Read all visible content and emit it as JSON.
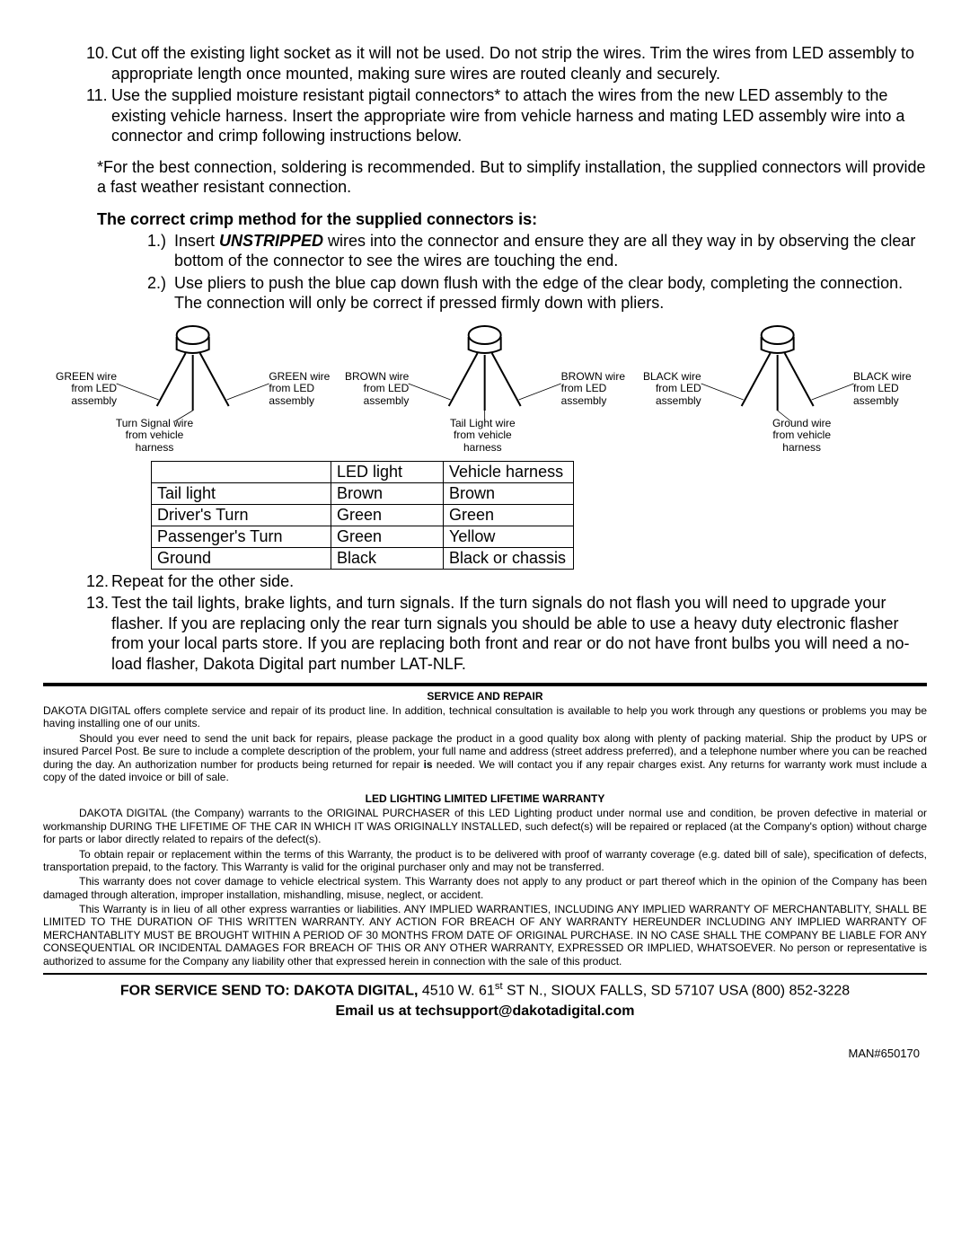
{
  "steps": {
    "s10": {
      "num": "10.",
      "text": "Cut off the existing light socket as it will not be used.  Do not strip the wires.  Trim the wires from LED assembly to appropriate length once mounted, making sure wires are routed cleanly and securely."
    },
    "s11": {
      "num": "11.",
      "text": "Use the supplied moisture resistant pigtail connectors* to attach the wires from the new LED assembly to the existing vehicle harness.  Insert the appropriate wire from vehicle harness and mating LED assembly wire into a connector and crimp following instructions below."
    },
    "s12": {
      "num": "12.",
      "text": "Repeat for the other side."
    },
    "s13": {
      "num": "13.",
      "text": "Test the tail lights, brake lights, and turn signals.  If the turn signals do not flash you will need to upgrade your flasher.  If you are replacing only the rear turn signals you should be able to use a heavy duty electronic flasher from your local parts store.  If you are replacing both front and rear or do not have front bulbs you will need a no-load flasher, Dakota Digital part number LAT-NLF."
    }
  },
  "note": "*For the best connection, soldering is recommended.  But to simplify installation, the supplied connectors will provide a fast weather resistant connection.",
  "crimp": {
    "heading": "The correct crimp method for the supplied connectors is",
    "colon": ":",
    "sub1_num": "1.)",
    "sub1_a": "Insert ",
    "sub1_bold": "UNSTRIPPED",
    "sub1_b": " wires into the connector and ensure they are all they way in by observing the clear bottom of the connector to see the wires are touching the end.",
    "sub2_num": "2.)",
    "sub2": "Use pliers to push the blue cap down flush with the edge of the clear body, completing the connection.  The connection will only be correct if pressed firmly down with pliers."
  },
  "connectors": [
    {
      "left": "GREEN wire\nfrom LED\nassembly",
      "right": "GREEN wire\nfrom LED\nassembly",
      "bottom": "Turn Signal wire\nfrom vehicle\nharness"
    },
    {
      "left": "BROWN wire\nfrom LED\nassembly",
      "right": "BROWN wire\nfrom LED\nassembly",
      "bottom": "Tail Light wire\nfrom vehicle\nharness"
    },
    {
      "left": "BLACK wire\nfrom LED\nassembly",
      "right": "BLACK wire\nfrom LED\nassembly",
      "bottom": "Ground wire\nfrom vehicle\nharness"
    }
  ],
  "table": {
    "rows": [
      [
        "",
        "LED light",
        "Vehicle harness"
      ],
      [
        "Tail light",
        "Brown",
        "Brown"
      ],
      [
        "Driver's Turn",
        "Green",
        "Green"
      ],
      [
        "Passenger's Turn",
        "Green",
        "Yellow"
      ],
      [
        "Ground",
        "Black",
        "Black or chassis"
      ]
    ]
  },
  "service": {
    "heading": "SERVICE AND REPAIR",
    "p1": "DAKOTA DIGITAL offers complete service and repair of its product line.  In addition, technical consultation is available to help you work through any questions or problems you may be having installing one of our units.",
    "p2a": "Should you ever need to send the unit back for repairs, please package the product in a good quality box along with plenty of packing material.  Ship the product by UPS or insured Parcel Post.  Be sure to include a complete description of the problem, your full name and address (street address preferred), and a telephone number where you can be reached during the day.  An authorization number for products being returned for repair ",
    "p2_bold": "is",
    "p2b": " needed.  We will contact you if any repair charges exist.  Any returns for warranty work must include a copy of the dated invoice or bill of sale."
  },
  "warranty": {
    "heading": "LED LIGHTING LIMITED LIFETIME WARRANTY",
    "p1": "DAKOTA DIGITAL (the Company) warrants to the ORIGINAL PURCHASER of this LED Lighting product under normal use and condition, be proven defective in material or workmanship DURING THE LIFETIME OF THE CAR IN WHICH IT WAS ORIGINALLY INSTALLED, such defect(s) will be repaired or replaced (at the Company's option) without charge for parts or labor directly related to repairs of the defect(s).",
    "p2": "To obtain repair or replacement within the terms of this Warranty, the product is to be delivered with proof of warranty coverage (e.g. dated bill of sale), specification of defects, transportation prepaid, to the factory.  This Warranty is valid for the original purchaser only and may not be transferred.",
    "p3": "This warranty does not cover damage to vehicle electrical system.  This Warranty does not apply to any product or part thereof which in the opinion of the Company has been damaged through alteration, improper installation, mishandling, misuse, neglect, or accident.",
    "p4": "This Warranty is in lieu of all other express warranties or liabilities.  ANY IMPLIED WARRANTIES, INCLUDING ANY IMPLIED WARRANTY OF MERCHANTABLITY, SHALL BE LIMITED TO THE DURATION OF THIS WRITTEN WARRANTY.  ANY ACTION FOR BREACH OF ANY WARRANTY HEREUNDER INCLUDING ANY IMPLIED WARRANTY OF MERCHANTABLITY MUST BE BROUGHT WITHIN A PERIOD OF 30 MONTHS FROM DATE OF ORIGINAL PURCHASE.  IN NO CASE SHALL THE COMPANY BE LIABLE FOR ANY CONSEQUENTIAL OR INCIDENTAL DAMAGES FOR BREACH OF THIS OR ANY OTHER WARRANTY, EXPRESSED OR IMPLIED, WHATSOEVER.  No person or representative is authorized to assume for the Company any liability other that expressed herein in connection with the sale of this product."
  },
  "contact": {
    "line1a": "FOR SERVICE SEND TO: ",
    "line1b": "DAKOTA DIGITAL,",
    "line1c": " 4510 W. 61",
    "line1d": "st",
    "line1e": " ST N., SIOUX FALLS, SD 57107 USA (800) 852-3228",
    "line2": "Email us at techsupport@dakotadigital.com"
  },
  "man": "MAN#650170"
}
